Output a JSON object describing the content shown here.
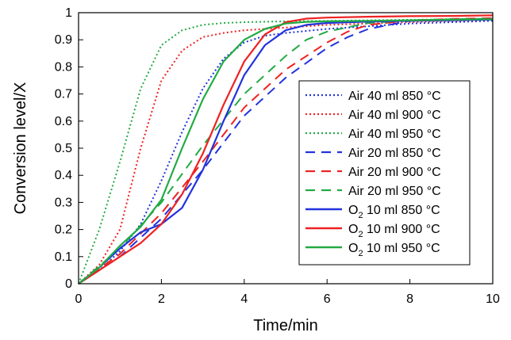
{
  "chart_data": {
    "type": "line",
    "title": "",
    "xlabel": "Time/min",
    "ylabel": "Conversion level/X",
    "xlim": [
      0,
      10
    ],
    "ylim": [
      0,
      1
    ],
    "xticks": [
      "0",
      "2",
      "4",
      "6",
      "8",
      "10"
    ],
    "yticks": [
      "0",
      "0.1",
      "0.2",
      "0.3",
      "0.4",
      "0.5",
      "0.6",
      "0.7",
      "0.8",
      "0.9",
      "1"
    ],
    "grid": false,
    "legend_position": "right",
    "series": [
      {
        "name": "Air 40 ml 850 °C",
        "label_prefix": "Air",
        "label_sub": "",
        "label_rest": " 40 ml 850 °C",
        "color": "#2233dd",
        "style": "dotted",
        "x": [
          0,
          0.5,
          1,
          1.5,
          2,
          2.5,
          3,
          3.5,
          4,
          4.5,
          5,
          6,
          7,
          8,
          9,
          10
        ],
        "y": [
          0,
          0.05,
          0.12,
          0.22,
          0.38,
          0.56,
          0.72,
          0.83,
          0.89,
          0.915,
          0.925,
          0.94,
          0.95,
          0.96,
          0.965,
          0.97
        ]
      },
      {
        "name": "Air 40 ml 900 °C",
        "label_prefix": "Air",
        "label_sub": "",
        "label_rest": " 40 ml 900 °C",
        "color": "#ee2222",
        "style": "dotted",
        "x": [
          0,
          0.5,
          1,
          1.5,
          2,
          2.5,
          3,
          3.5,
          4,
          5,
          6,
          7,
          8,
          9,
          10
        ],
        "y": [
          0,
          0.07,
          0.2,
          0.5,
          0.75,
          0.86,
          0.91,
          0.925,
          0.935,
          0.945,
          0.955,
          0.96,
          0.965,
          0.97,
          0.975
        ]
      },
      {
        "name": "Air 40 ml 950 °C",
        "label_prefix": "Air",
        "label_sub": "",
        "label_rest": " 40 ml 950 °C",
        "color": "#22aa44",
        "style": "dotted",
        "x": [
          0,
          0.5,
          1,
          1.5,
          2,
          2.5,
          3,
          3.5,
          4,
          5,
          6,
          7,
          8,
          9,
          10
        ],
        "y": [
          0,
          0.2,
          0.45,
          0.72,
          0.88,
          0.935,
          0.955,
          0.962,
          0.965,
          0.968,
          0.97,
          0.972,
          0.974,
          0.975,
          0.976
        ]
      },
      {
        "name": "Air 20 ml 850 °C",
        "label_prefix": "Air",
        "label_sub": "",
        "label_rest": " 20 ml 850 °C",
        "color": "#2233dd",
        "style": "dashed",
        "x": [
          0,
          1,
          2,
          3,
          4,
          5,
          6,
          6.5,
          7,
          8,
          9,
          10
        ],
        "y": [
          0,
          0.1,
          0.24,
          0.42,
          0.62,
          0.76,
          0.87,
          0.91,
          0.94,
          0.97,
          0.975,
          0.978
        ]
      },
      {
        "name": "Air 20 ml 900 °C",
        "label_prefix": "Air",
        "label_sub": "",
        "label_rest": " 20 ml 900 °C",
        "color": "#ee2222",
        "style": "dashed",
        "x": [
          0,
          1,
          2,
          3,
          4,
          5,
          6,
          6.5,
          7,
          8,
          9,
          10
        ],
        "y": [
          0,
          0.11,
          0.26,
          0.45,
          0.65,
          0.79,
          0.89,
          0.93,
          0.955,
          0.972,
          0.977,
          0.98
        ]
      },
      {
        "name": "Air 20 ml 950 °C",
        "label_prefix": "Air",
        "label_sub": "",
        "label_rest": " 20 ml 950 °C",
        "color": "#22aa44",
        "style": "dashed",
        "x": [
          0,
          1,
          2,
          3,
          4,
          5,
          5.5,
          6,
          7,
          8,
          9,
          10
        ],
        "y": [
          0,
          0.13,
          0.3,
          0.51,
          0.7,
          0.84,
          0.9,
          0.93,
          0.962,
          0.972,
          0.976,
          0.978
        ]
      },
      {
        "name": "O2 10 ml 850 °C",
        "label_prefix": "O",
        "label_sub": "2",
        "label_rest": " 10 ml 850 °C",
        "color": "#2233dd",
        "style": "solid",
        "x": [
          0,
          0.5,
          1,
          1.5,
          2,
          2.5,
          3,
          3.5,
          4,
          4.5,
          5,
          5.5,
          6,
          7,
          8,
          9,
          10
        ],
        "y": [
          0,
          0.06,
          0.13,
          0.19,
          0.22,
          0.28,
          0.42,
          0.6,
          0.77,
          0.88,
          0.935,
          0.955,
          0.962,
          0.967,
          0.97,
          0.972,
          0.975
        ]
      },
      {
        "name": "O2 10 ml 900 °C",
        "label_prefix": "O",
        "label_sub": "2",
        "label_rest": " 10 ml 900 °C",
        "color": "#ee2222",
        "style": "solid",
        "x": [
          0,
          0.5,
          1,
          1.5,
          2,
          2.5,
          3,
          3.5,
          4,
          4.5,
          5,
          5.5,
          6,
          7,
          8,
          9,
          10
        ],
        "y": [
          0,
          0.05,
          0.1,
          0.15,
          0.22,
          0.33,
          0.48,
          0.66,
          0.82,
          0.92,
          0.965,
          0.978,
          0.982,
          0.985,
          0.987,
          0.988,
          0.99
        ]
      },
      {
        "name": "O2 10 ml 950 °C",
        "label_prefix": "O",
        "label_sub": "2",
        "label_rest": " 10 ml 950 °C",
        "color": "#22aa44",
        "style": "solid",
        "x": [
          0,
          0.5,
          1,
          1.5,
          2,
          2.5,
          3,
          3.5,
          4,
          4.5,
          5,
          5.5,
          6,
          7,
          8,
          9,
          10
        ],
        "y": [
          0,
          0.06,
          0.14,
          0.21,
          0.31,
          0.5,
          0.68,
          0.82,
          0.9,
          0.94,
          0.96,
          0.966,
          0.968,
          0.97,
          0.972,
          0.974,
          0.976
        ]
      }
    ]
  }
}
